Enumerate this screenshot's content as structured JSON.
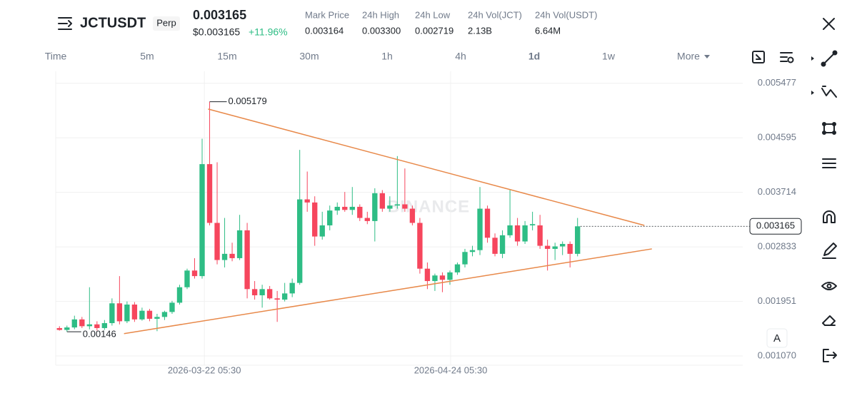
{
  "header": {
    "symbol": "JCTUSDT",
    "badge": "Perp",
    "price": "0.003165",
    "price_usd": "$0.003165",
    "change": "+11.96%",
    "stats": [
      {
        "label": "Mark Price",
        "value": "0.003164"
      },
      {
        "label": "24h High",
        "value": "0.003300"
      },
      {
        "label": "24h Low",
        "value": "0.002719"
      },
      {
        "label": "24h Vol(JCT)",
        "value": "2.13B"
      },
      {
        "label": "24h Vol(USDT)",
        "value": "6.64M"
      }
    ]
  },
  "timeframes": [
    "Time",
    "5m",
    "15m",
    "30m",
    "1h",
    "4h",
    "1d",
    "1w",
    "More"
  ],
  "active_timeframe_index": 6,
  "corner_button": "A",
  "chart_data": {
    "type": "candlestick",
    "open": [
      0.00152,
      0.00149,
      0.00153,
      0.00166,
      0.00155,
      0.00158,
      0.00152,
      0.0016,
      0.00192,
      0.00163,
      0.0019,
      0.00166,
      0.0018,
      0.00167,
      0.0017,
      0.00178,
      0.00193,
      0.00218,
      0.00245,
      0.00236,
      0.00417,
      0.00322,
      0.00262,
      0.00272,
      0.00265,
      0.0031,
      0.00215,
      0.00205,
      0.00215,
      0.002,
      0.00198,
      0.00208,
      0.00225,
      0.0036,
      0.00355,
      0.003,
      0.00318,
      0.00342,
      0.00348,
      0.00343,
      0.00348,
      0.0033,
      0.00325,
      0.0037,
      0.00345,
      0.0035,
      0.00352,
      0.00345,
      0.00322,
      0.00248,
      0.00228,
      0.00237,
      0.0023,
      0.00242,
      0.00255,
      0.00275,
      0.00278,
      0.00345,
      0.00298,
      0.00272,
      0.00302,
      0.00318,
      0.00292,
      0.00318,
      0.00318,
      0.00285,
      0.0028,
      0.00284,
      0.00288,
      0.00272
    ],
    "high": [
      0.00155,
      0.00156,
      0.00172,
      0.0017,
      0.00218,
      0.00163,
      0.00165,
      0.002,
      0.00236,
      0.00195,
      0.00194,
      0.00185,
      0.00183,
      0.00175,
      0.0018,
      0.00196,
      0.00222,
      0.00248,
      0.00265,
      0.00458,
      0.005179,
      0.0042,
      0.0033,
      0.0029,
      0.00335,
      0.00322,
      0.00228,
      0.00222,
      0.0022,
      0.00212,
      0.00225,
      0.00232,
      0.0044,
      0.00405,
      0.00365,
      0.0034,
      0.0035,
      0.00355,
      0.00372,
      0.0038,
      0.00352,
      0.0034,
      0.00378,
      0.00375,
      0.00365,
      0.0043,
      0.0041,
      0.0035,
      0.0033,
      0.00258,
      0.0024,
      0.00242,
      0.00245,
      0.00258,
      0.0028,
      0.00285,
      0.0038,
      0.0035,
      0.00305,
      0.0031,
      0.00375,
      0.0033,
      0.00325,
      0.0034,
      0.00335,
      0.00295,
      0.0029,
      0.00292,
      0.00292,
      0.0033
    ],
    "low": [
      0.001479,
      0.00146,
      0.0015,
      0.00152,
      0.0015,
      0.00148,
      0.00149,
      0.00156,
      0.00158,
      0.0016,
      0.00162,
      0.00164,
      0.00163,
      0.00147,
      0.00165,
      0.00175,
      0.0019,
      0.00215,
      0.00232,
      0.00232,
      0.00318,
      0.00255,
      0.0025,
      0.0026,
      0.00262,
      0.002,
      0.00198,
      0.00185,
      0.00198,
      0.00162,
      0.00195,
      0.00202,
      0.00222,
      0.0034,
      0.00285,
      0.00295,
      0.0031,
      0.00335,
      0.0034,
      0.00335,
      0.00325,
      0.0032,
      0.00292,
      0.0034,
      0.0034,
      0.00345,
      0.0034,
      0.00318,
      0.0024,
      0.00215,
      0.00212,
      0.0021,
      0.00222,
      0.00238,
      0.0025,
      0.00268,
      0.0027,
      0.0029,
      0.00268,
      0.00265,
      0.00298,
      0.00285,
      0.00288,
      0.0031,
      0.0028,
      0.00245,
      0.00262,
      0.0027,
      0.0025,
      0.00268
    ],
    "close": [
      0.00149,
      0.00153,
      0.00166,
      0.00155,
      0.00158,
      0.00152,
      0.0016,
      0.00192,
      0.00163,
      0.0019,
      0.00166,
      0.0018,
      0.00167,
      0.0017,
      0.00178,
      0.00193,
      0.00218,
      0.00245,
      0.00236,
      0.00417,
      0.00322,
      0.00262,
      0.00272,
      0.00265,
      0.0031,
      0.00215,
      0.00205,
      0.00215,
      0.002,
      0.00198,
      0.00208,
      0.00225,
      0.0036,
      0.00355,
      0.003,
      0.00318,
      0.00342,
      0.00348,
      0.00343,
      0.00348,
      0.0033,
      0.00325,
      0.0037,
      0.00345,
      0.0035,
      0.00352,
      0.00345,
      0.00322,
      0.00248,
      0.00228,
      0.00237,
      0.0023,
      0.00242,
      0.00255,
      0.00275,
      0.00278,
      0.00345,
      0.00298,
      0.00272,
      0.00302,
      0.00318,
      0.00292,
      0.00318,
      0.0032,
      0.00285,
      0.0028,
      0.00284,
      0.00288,
      0.00272,
      0.003165
    ],
    "up_color": "#2ebd85",
    "down_color": "#f6465d",
    "xlim": [
      -0.5,
      91
    ],
    "xticks": [
      {
        "value": 19.3,
        "label": "2026-03-22 05:30"
      },
      {
        "value": 52.1,
        "label": "2026-04-24 05:30"
      }
    ],
    "ylim": [
      0.00092,
      0.00567
    ],
    "yticks": [
      {
        "value": 0.00107,
        "label": "0.001070"
      },
      0.001951,
      0.002833,
      0.003714,
      0.004595,
      0.005477
    ],
    "grid": true,
    "trendlines": [
      {
        "start": [
          19.8,
          0.00506
        ],
        "end": [
          77.9,
          0.00318
        ]
      },
      {
        "start": [
          8.6,
          0.00143
        ],
        "end": [
          78.9,
          0.0028
        ]
      }
    ],
    "trendline_color": "#e8894a",
    "watermark": "BINANCE"
  }
}
